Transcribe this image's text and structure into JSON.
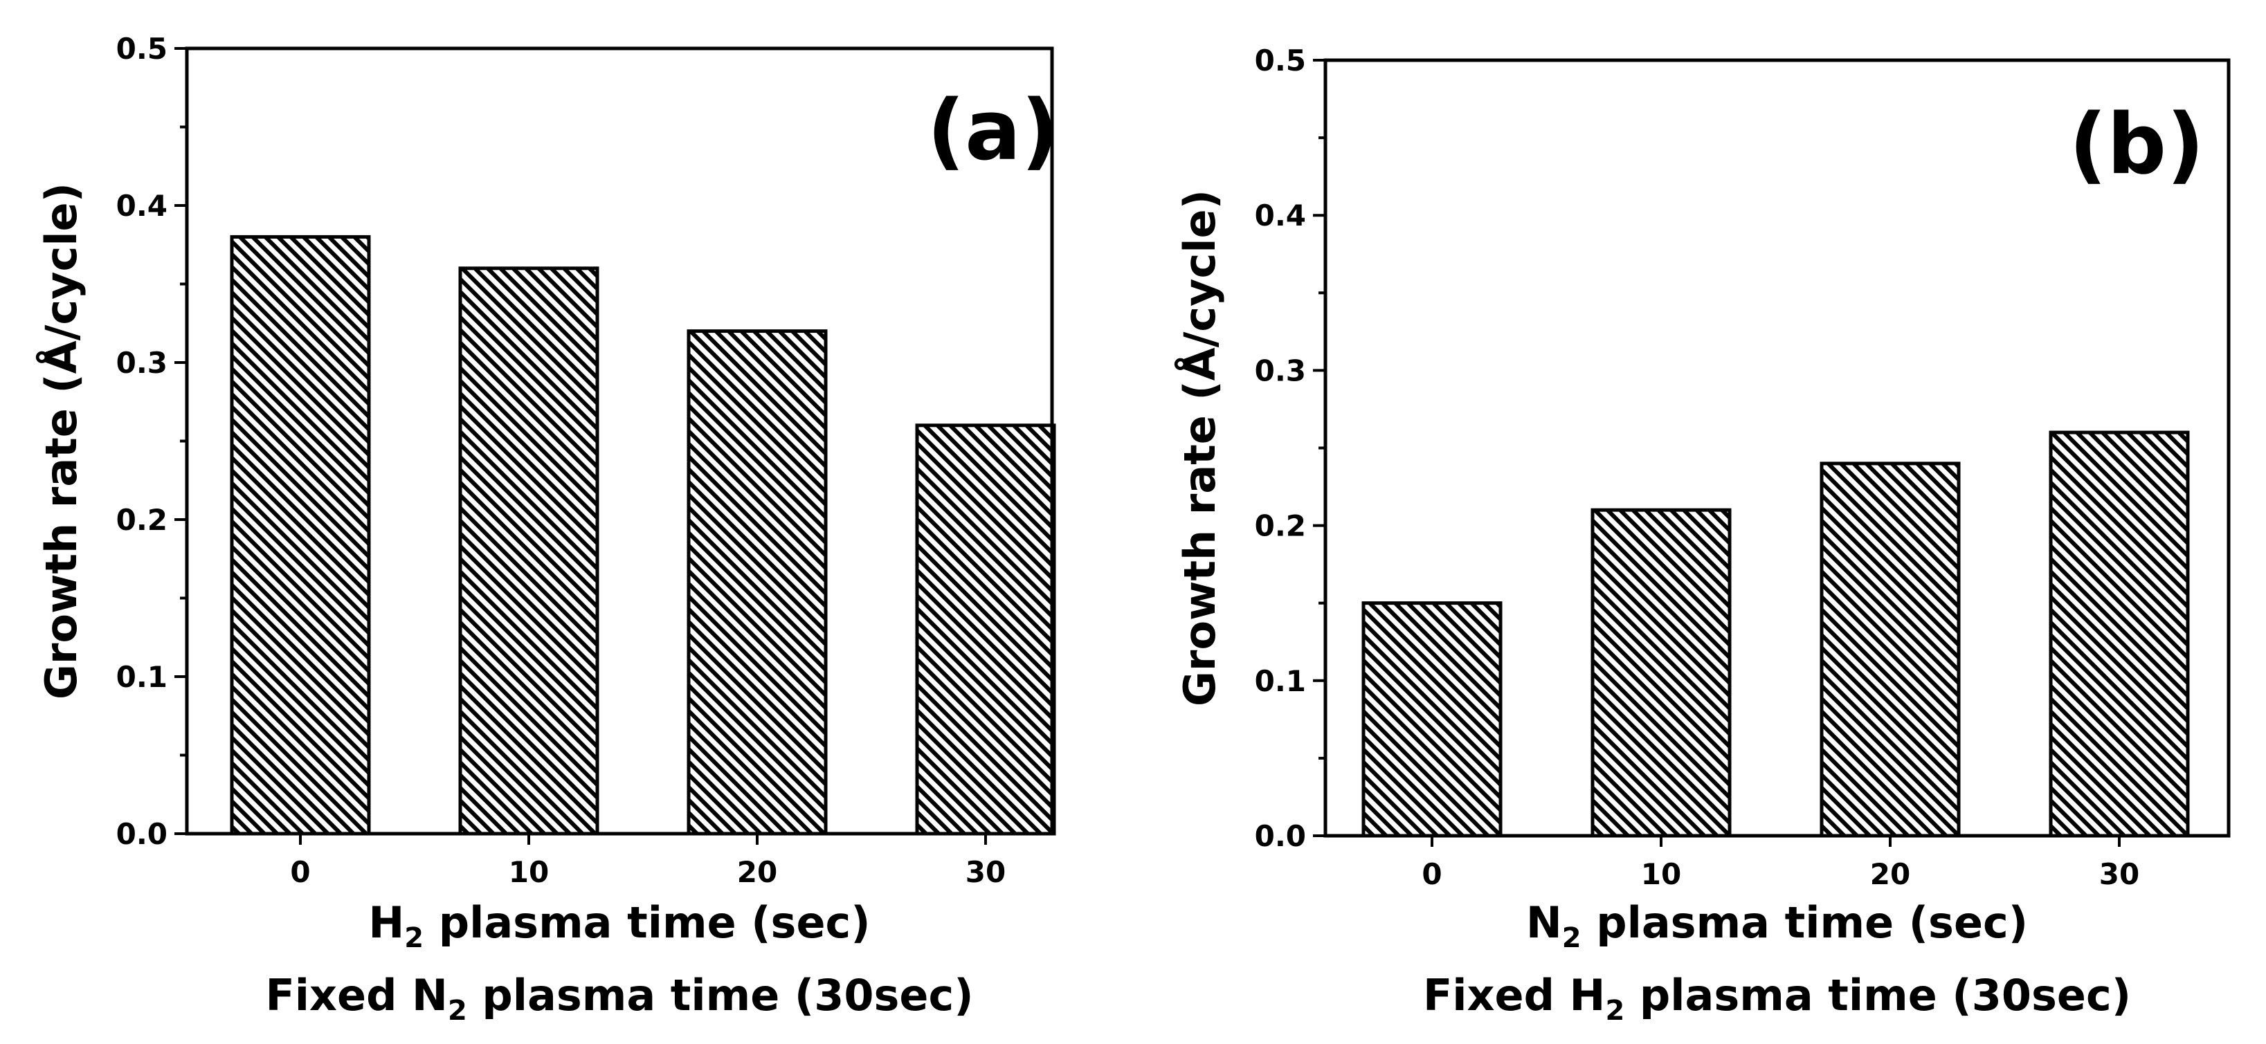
{
  "chart_data": [
    {
      "type": "bar",
      "panel_label": "(a)",
      "categories": [
        "0",
        "10",
        "20",
        "30"
      ],
      "values": [
        0.38,
        0.36,
        0.32,
        0.26
      ],
      "ylabel": "Growth rate (Å/cycle)",
      "xlabel": {
        "pre": "H",
        "sub": "2",
        "post": " plasma time (sec)"
      },
      "xlabel2": {
        "pre": "Fixed N",
        "sub": "2",
        "post": " plasma time (30sec)"
      },
      "ylim": [
        0,
        0.5
      ],
      "yticks": [
        "0.0",
        "0.1",
        "0.2",
        "0.3",
        "0.4",
        "0.5"
      ],
      "grid": false,
      "bar_fill": "hatched"
    },
    {
      "type": "bar",
      "panel_label": "(b)",
      "categories": [
        "0",
        "10",
        "20",
        "30"
      ],
      "values": [
        0.15,
        0.21,
        0.24,
        0.26
      ],
      "ylabel": "Growth rate (Å/cycle)",
      "xlabel": {
        "pre": "N",
        "sub": "2",
        "post": " plasma time (sec)"
      },
      "xlabel2": {
        "pre": "Fixed H",
        "sub": "2",
        "post": " plasma time (30sec)"
      },
      "ylim": [
        0,
        0.5
      ],
      "yticks": [
        "0.0",
        "0.1",
        "0.2",
        "0.3",
        "0.4",
        "0.5"
      ],
      "grid": false,
      "bar_fill": "hatched"
    }
  ],
  "colors": {
    "bar_fill": "#000000",
    "bar_hatch_bg": "#ffffff",
    "axis": "#000000"
  }
}
